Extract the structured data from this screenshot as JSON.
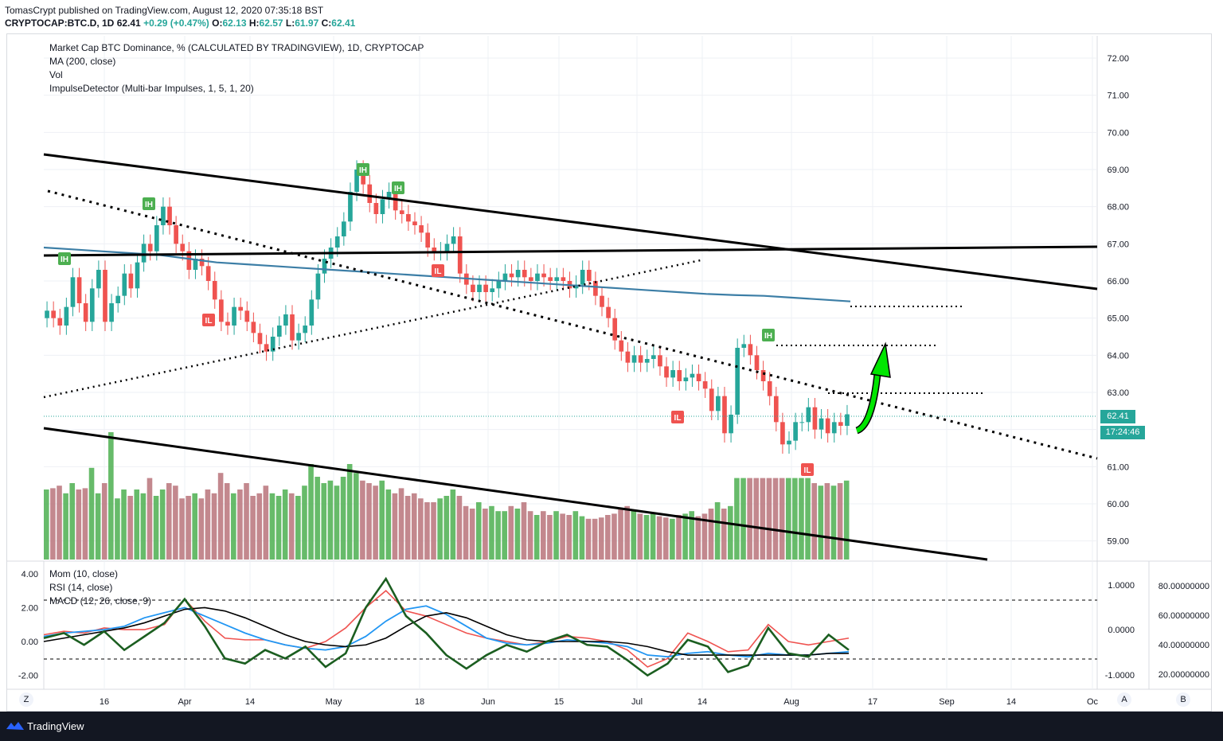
{
  "header": {
    "publisher": "TomasCrypt published on TradingView.com, August 12, 2020 07:35:18 BST",
    "symbol": "CRYPTOCAP:BTC.D, 1D",
    "last": "62.41",
    "change": "+0.29 (+0.47%)",
    "o_label": "O:",
    "o_val": "62.13",
    "h_label": "H:",
    "h_val": "62.57",
    "l_label": "L:",
    "l_val": "61.97",
    "c_label": "C:",
    "c_val": "62.41"
  },
  "legend": {
    "main_title": "Market Cap BTC Dominance, % (CALCULATED BY TRADINGVIEW), 1D, CRYPTOCAP",
    "ma": "MA (200, close)",
    "vol": "Vol",
    "impulse": "ImpulseDetector (Multi-bar Impulses, 1, 5, 1, 20)",
    "mom": "Mom (10, close)",
    "rsi": "RSI (14, close)",
    "macd": "MACD (12, 26, close, 9)"
  },
  "price_badge": "62.41",
  "countdown_badge": "17:24:46",
  "footer": {
    "brand": "TradingView"
  },
  "axis_buttons": {
    "z": "Z",
    "a": "A",
    "b": "B"
  },
  "colors": {
    "up": "#26a69a",
    "down": "#ef5350",
    "vol_up": "#4caf50",
    "vol_down": "#b9737a",
    "ma": "#3c7ea6",
    "mom": "#1b5e20",
    "rsi": "#ef5350",
    "macd": "#2196f3",
    "signal": "#000000",
    "arrow": "#00e600",
    "badge_green": "#26a69a",
    "ih": "#4caf50",
    "il": "#ef5350"
  },
  "chart_data": {
    "type": "candlestick",
    "title": "Market Cap BTC Dominance, %",
    "y_ticks": [
      "72.00",
      "71.00",
      "70.00",
      "69.00",
      "68.00",
      "67.00",
      "66.00",
      "65.00",
      "64.00",
      "63.00",
      "62.00",
      "61.00",
      "60.00",
      "59.00"
    ],
    "x_ticks": [
      "16",
      "Apr",
      "14",
      "May",
      "18",
      "Jun",
      "15",
      "Jul",
      "14",
      "Aug",
      "17",
      "Sep",
      "14",
      "Oc"
    ],
    "left_axis_ticks": [
      "4.00",
      "2.00",
      "0.00",
      "-2.00"
    ],
    "right_axis_ticks": [
      "1.0000",
      "0.0000",
      "-1.0000"
    ],
    "far_axis_ticks": [
      "80.00000000",
      "60.00000000",
      "40.00000000",
      "20.00000000"
    ],
    "ylim": [
      58.5,
      72.6
    ],
    "markers": [
      {
        "label": "IH",
        "date": "Mar 9"
      },
      {
        "label": "IH",
        "date": "Mar 23"
      },
      {
        "label": "IL",
        "date": "Apr 4"
      },
      {
        "label": "IH",
        "date": "May 7"
      },
      {
        "label": "IH",
        "date": "May 12"
      },
      {
        "label": "IL",
        "date": "May 25"
      },
      {
        "label": "IL",
        "date": "Jul 11"
      },
      {
        "label": "IH",
        "date": "Jul 26"
      },
      {
        "label": "IL",
        "date": "Aug 2"
      }
    ],
    "closes": [
      65.2,
      65.0,
      64.8,
      65.3,
      66.1,
      65.4,
      64.9,
      65.8,
      66.3,
      64.9,
      65.4,
      65.6,
      66.2,
      65.8,
      66.5,
      67.0,
      66.8,
      67.5,
      68.0,
      67.5,
      67.0,
      66.8,
      66.3,
      66.6,
      66.4,
      66.0,
      65.5,
      64.9,
      64.8,
      65.3,
      65.2,
      64.9,
      64.6,
      64.3,
      64.1,
      64.5,
      64.8,
      65.1,
      64.4,
      64.6,
      64.8,
      65.5,
      66.2,
      66.6,
      66.9,
      67.2,
      67.6,
      68.4,
      69.0,
      68.6,
      68.1,
      67.8,
      68.2,
      68.4,
      67.9,
      67.8,
      67.6,
      67.5,
      67.3,
      66.9,
      66.8,
      66.8,
      67.0,
      67.2,
      66.2,
      65.9,
      65.7,
      65.9,
      65.7,
      65.8,
      66.0,
      66.2,
      66.1,
      66.3,
      66.1,
      66.0,
      66.2,
      66.1,
      66.0,
      66.1,
      66.0,
      65.8,
      65.9,
      66.3,
      66.0,
      65.6,
      65.3,
      65.0,
      64.4,
      64.1,
      63.8,
      64.0,
      63.8,
      63.9,
      64.0,
      63.7,
      63.4,
      63.6,
      63.3,
      63.4,
      63.5,
      63.3,
      63.1,
      62.5,
      62.9,
      61.9,
      62.4,
      64.2,
      64.3,
      64.0,
      63.6,
      63.3,
      62.9,
      62.2,
      61.6,
      61.7,
      62.2,
      62.2,
      62.6,
      62.0,
      62.3,
      61.9,
      62.2,
      62.1,
      62.41
    ],
    "volumes": [
      0.55,
      0.56,
      0.58,
      0.52,
      0.6,
      0.55,
      0.56,
      0.72,
      0.52,
      0.6,
      1.0,
      0.48,
      0.55,
      0.5,
      0.55,
      0.52,
      0.64,
      0.5,
      0.55,
      0.6,
      0.58,
      0.48,
      0.5,
      0.52,
      0.48,
      0.55,
      0.52,
      0.68,
      0.6,
      0.52,
      0.55,
      0.6,
      0.5,
      0.52,
      0.58,
      0.52,
      0.5,
      0.55,
      0.52,
      0.5,
      0.58,
      0.75,
      0.65,
      0.6,
      0.62,
      0.58,
      0.65,
      0.75,
      0.68,
      0.62,
      0.6,
      0.58,
      0.62,
      0.55,
      0.52,
      0.56,
      0.5,
      0.52,
      0.48,
      0.45,
      0.45,
      0.48,
      0.5,
      0.55,
      0.5,
      0.42,
      0.4,
      0.45,
      0.4,
      0.42,
      0.38,
      0.38,
      0.42,
      0.4,
      0.45,
      0.38,
      0.35,
      0.38,
      0.35,
      0.38,
      0.36,
      0.35,
      0.38,
      0.34,
      0.32,
      0.32,
      0.33,
      0.35,
      0.36,
      0.4,
      0.42,
      0.38,
      0.36,
      0.35,
      0.36,
      0.34,
      0.33,
      0.32,
      0.35,
      0.36,
      0.38,
      0.34,
      0.36,
      0.4,
      0.45,
      0.4,
      0.42,
      0.64,
      0.64,
      0.64,
      0.64,
      0.64,
      0.64,
      0.64,
      0.64,
      0.64,
      0.64,
      0.64,
      0.64,
      0.6,
      0.58,
      0.6,
      0.58,
      0.6,
      0.62
    ],
    "ma200": [
      66.9,
      66.85,
      66.8,
      66.75,
      66.7,
      66.6,
      66.5,
      66.45,
      66.4,
      66.35,
      66.3,
      66.25,
      66.2,
      66.15,
      66.1,
      66.05,
      66.0,
      65.95,
      65.9,
      65.85,
      65.8,
      65.75,
      65.7,
      65.65,
      65.62,
      65.6,
      65.55,
      65.5,
      65.45
    ],
    "mom": [
      0.2,
      0.5,
      -0.2,
      0.6,
      -0.5,
      0.3,
      1.1,
      2.5,
      0.9,
      -1.0,
      -1.3,
      -0.5,
      -1.0,
      -0.3,
      -1.5,
      -0.7,
      2.0,
      3.7,
      1.5,
      0.5,
      -0.8,
      -1.6,
      -0.8,
      -0.2,
      -0.6,
      0.0,
      0.4,
      -0.2,
      -0.3,
      -1.1,
      -2.0,
      -1.3,
      0.1,
      -0.3,
      -1.8,
      -1.4,
      0.8,
      -0.7,
      -0.9,
      0.4,
      -0.5
    ],
    "rsi": [
      0.4,
      0.6,
      0.5,
      0.8,
      0.7,
      0.7,
      1.0,
      2.5,
      1.2,
      0.2,
      0.1,
      0.1,
      -0.2,
      -0.4,
      0.0,
      0.8,
      2.0,
      3.0,
      1.8,
      1.5,
      1.0,
      0.5,
      0.2,
      0.0,
      -0.2,
      0.0,
      0.3,
      0.2,
      0.0,
      -0.5,
      -1.5,
      -1.0,
      0.5,
      0.0,
      -0.6,
      -0.5,
      1.0,
      0.0,
      -0.2,
      0.0,
      0.2
    ],
    "macd": [
      0.3,
      0.5,
      0.6,
      0.7,
      0.9,
      1.4,
      1.7,
      2.0,
      1.5,
      1.0,
      0.5,
      0.1,
      -0.2,
      -0.4,
      -0.5,
      -0.3,
      0.3,
      1.2,
      1.9,
      2.1,
      1.6,
      0.9,
      0.2,
      -0.1,
      -0.2,
      -0.1,
      0.1,
      0.0,
      -0.1,
      -0.3,
      -0.8,
      -0.9,
      -0.7,
      -0.6,
      -0.8,
      -0.9,
      -0.7,
      -0.8,
      -0.8,
      -0.7,
      -0.6
    ],
    "signal": [
      0.0,
      0.2,
      0.4,
      0.6,
      0.8,
      1.1,
      1.5,
      1.9,
      2.0,
      1.8,
      1.4,
      0.9,
      0.4,
      0.0,
      -0.2,
      -0.3,
      -0.2,
      0.2,
      0.9,
      1.5,
      1.7,
      1.4,
      0.9,
      0.4,
      0.1,
      0.0,
      0.0,
      0.0,
      0.0,
      -0.1,
      -0.3,
      -0.6,
      -0.8,
      -0.8,
      -0.8,
      -0.8,
      -0.8,
      -0.8,
      -0.8,
      -0.7,
      -0.7
    ]
  }
}
